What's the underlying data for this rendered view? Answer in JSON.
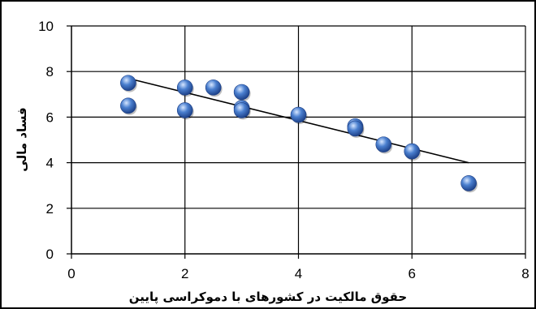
{
  "chart_data": {
    "type": "scatter",
    "title": "",
    "xlabel": "حقوق مالکیت در کشورهای با دموکراسی پایین",
    "ylabel": "فساد مالی",
    "xlim": [
      0,
      8
    ],
    "ylim": [
      0,
      10
    ],
    "x_ticks": [
      "0",
      "2",
      "4",
      "6",
      "8"
    ],
    "y_ticks": [
      "0",
      "2",
      "4",
      "6",
      "8",
      "10"
    ],
    "grid": true,
    "legend": "none",
    "series": [
      {
        "points": [
          {
            "x": 1,
            "y": 7.5
          },
          {
            "x": 1,
            "y": 6.5
          },
          {
            "x": 2,
            "y": 7.3
          },
          {
            "x": 2,
            "y": 6.3
          },
          {
            "x": 2.5,
            "y": 7.3
          },
          {
            "x": 3,
            "y": 7.1
          },
          {
            "x": 3,
            "y": 6.4
          },
          {
            "x": 3,
            "y": 6.3
          },
          {
            "x": 4,
            "y": 6.1
          },
          {
            "x": 5,
            "y": 5.6
          },
          {
            "x": 5,
            "y": 5.5
          },
          {
            "x": 5.5,
            "y": 4.8
          },
          {
            "x": 6,
            "y": 4.5
          },
          {
            "x": 7,
            "y": 3.1
          }
        ]
      }
    ],
    "trendline": {
      "x": [
        1,
        7
      ],
      "y": [
        7.7,
        4.0
      ]
    },
    "colors": {
      "marker": "#4a7fcf",
      "marker_highlight": "#d6e6ff",
      "marker_shadow": "#1c3f86",
      "trendline": "#000000",
      "grid": "#000000"
    }
  }
}
